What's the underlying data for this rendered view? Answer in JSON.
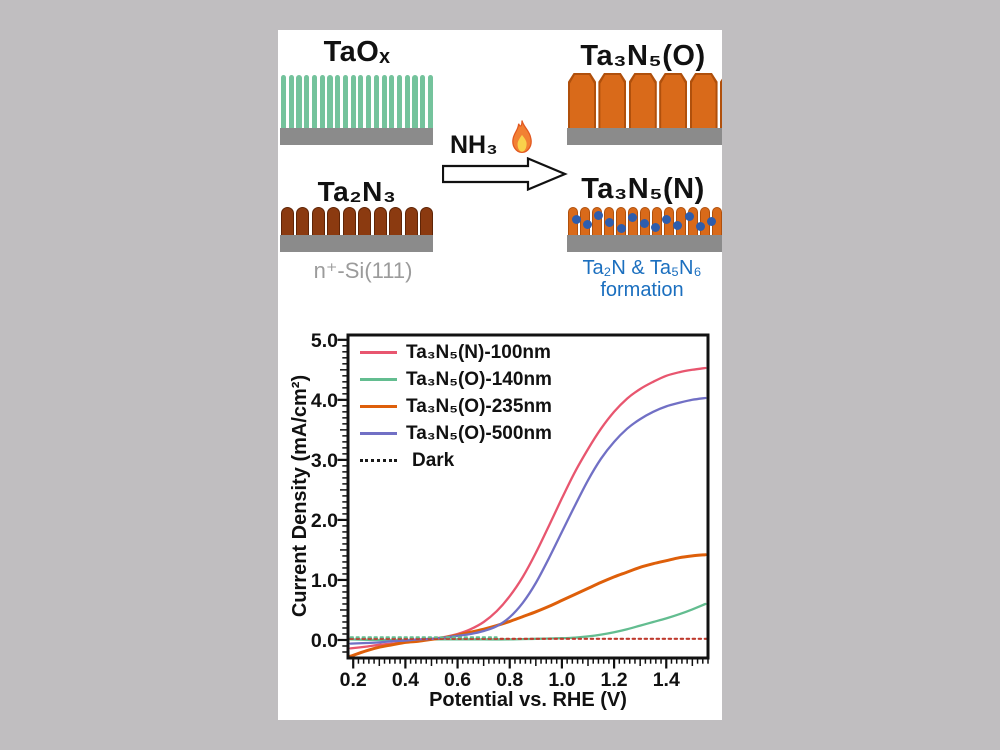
{
  "page_bg": "#c0bec0",
  "panel_bg": "#ffffff",
  "diagram": {
    "taox_label": "TaOₓ",
    "ta2n3_label": "Ta₂N₃",
    "ta3n5_o_label": "Ta₃N₅(O)",
    "ta3n5_n_label": "Ta₃N₅(N)",
    "reaction_gas": "NH₃",
    "flame_icon": "flame",
    "substrate_caption": "n⁺-Si(111)",
    "note_line1": "Ta₂N & Ta₅N₆",
    "note_line2": "formation",
    "colors": {
      "nanorod_green": "#74c39c",
      "ta2n3_brown": "#8b3a10",
      "ta3n5_orange": "#d96a1a",
      "substrate_gray": "#8b8b8b",
      "nitrogen_dot_blue": "#2e5dad",
      "note_blue": "#1b6fbf",
      "caption_gray": "#9b9b9b"
    }
  },
  "chart_data": {
    "type": "line",
    "title": "",
    "xlabel": "Potential vs. RHE (V)",
    "ylabel": "Current Density (mA/cm²)",
    "xlim": [
      0.18,
      1.56
    ],
    "ylim": [
      -0.3,
      5.08
    ],
    "x_ticks": [
      0.2,
      0.4,
      0.6,
      0.8,
      1.0,
      1.2,
      1.4
    ],
    "x_tick_labels": [
      "0.2",
      "0.4",
      "0.6",
      "0.8",
      "1.0",
      "1.2",
      "1.4"
    ],
    "y_ticks": [
      0,
      1,
      2,
      3,
      4,
      5
    ],
    "y_tick_labels": [
      "0.0",
      "1.0",
      "2.0",
      "3.0",
      "4.0",
      "5.0"
    ],
    "x_minor_step": 0.02,
    "y_minor_step": 0.1,
    "grid": false,
    "legend_position": "top-left",
    "series": [
      {
        "name": "Ta₃N₅(N)-100nm",
        "color": "#e8566f",
        "style": "solid",
        "width": 2.3,
        "x": [
          0.19,
          0.25,
          0.3,
          0.35,
          0.4,
          0.45,
          0.5,
          0.55,
          0.6,
          0.65,
          0.7,
          0.75,
          0.8,
          0.85,
          0.9,
          0.95,
          1.0,
          1.05,
          1.1,
          1.15,
          1.2,
          1.25,
          1.3,
          1.35,
          1.4,
          1.45,
          1.5,
          1.55
        ],
        "y": [
          -0.14,
          -0.11,
          -0.08,
          -0.06,
          -0.03,
          -0.01,
          0.02,
          0.05,
          0.1,
          0.18,
          0.3,
          0.48,
          0.73,
          1.05,
          1.45,
          1.9,
          2.36,
          2.8,
          3.18,
          3.52,
          3.8,
          4.02,
          4.18,
          4.3,
          4.4,
          4.46,
          4.5,
          4.53
        ]
      },
      {
        "name": "Ta₃N₅(O)-140nm",
        "color": "#63bd90",
        "style": "solid",
        "width": 2.3,
        "x": [
          0.19,
          0.3,
          0.4,
          0.5,
          0.6,
          0.7,
          0.8,
          0.9,
          1.0,
          1.05,
          1.1,
          1.15,
          1.2,
          1.25,
          1.3,
          1.35,
          1.4,
          1.45,
          1.5,
          1.55
        ],
        "y": [
          0.01,
          0.0,
          0.0,
          0.01,
          0.01,
          0.01,
          0.01,
          0.02,
          0.03,
          0.04,
          0.06,
          0.09,
          0.13,
          0.18,
          0.24,
          0.3,
          0.36,
          0.43,
          0.51,
          0.6
        ]
      },
      {
        "name": "Ta₃N₅(O)-235nm",
        "color": "#de5f0a",
        "style": "solid",
        "width": 3,
        "x": [
          0.19,
          0.25,
          0.3,
          0.35,
          0.4,
          0.45,
          0.5,
          0.55,
          0.6,
          0.65,
          0.7,
          0.75,
          0.8,
          0.85,
          0.9,
          0.95,
          1.0,
          1.05,
          1.1,
          1.15,
          1.2,
          1.25,
          1.3,
          1.35,
          1.4,
          1.45,
          1.5,
          1.55
        ],
        "y": [
          -0.27,
          -0.18,
          -0.12,
          -0.08,
          -0.04,
          -0.02,
          0.01,
          0.04,
          0.08,
          0.13,
          0.18,
          0.24,
          0.31,
          0.39,
          0.47,
          0.56,
          0.66,
          0.76,
          0.86,
          0.96,
          1.05,
          1.13,
          1.21,
          1.27,
          1.32,
          1.37,
          1.4,
          1.42
        ]
      },
      {
        "name": "Ta₃N₅(O)-500nm",
        "color": "#7170c5",
        "style": "solid",
        "width": 2.3,
        "x": [
          0.19,
          0.25,
          0.3,
          0.35,
          0.4,
          0.45,
          0.5,
          0.55,
          0.6,
          0.65,
          0.7,
          0.75,
          0.8,
          0.85,
          0.9,
          0.95,
          1.0,
          1.05,
          1.1,
          1.15,
          1.2,
          1.25,
          1.3,
          1.35,
          1.4,
          1.45,
          1.5,
          1.55
        ],
        "y": [
          -0.06,
          -0.05,
          -0.04,
          -0.02,
          -0.01,
          0.01,
          0.02,
          0.04,
          0.07,
          0.1,
          0.15,
          0.23,
          0.38,
          0.62,
          0.95,
          1.36,
          1.8,
          2.24,
          2.66,
          3.02,
          3.3,
          3.52,
          3.68,
          3.8,
          3.89,
          3.95,
          4.0,
          4.03
        ]
      },
      {
        "name": "Dark",
        "legend_color": "#1a1a1a",
        "color": "#bf3a2e",
        "style": "dotted",
        "width": 2.2,
        "x": [
          0.19,
          1.555
        ],
        "y": [
          0.02,
          0.02
        ]
      },
      {
        "name": "",
        "show_in_legend": false,
        "color": "#63bd90",
        "style": "dotted",
        "width": 2,
        "x": [
          0.19,
          0.75
        ],
        "y": [
          0.045,
          0.045
        ]
      }
    ]
  }
}
